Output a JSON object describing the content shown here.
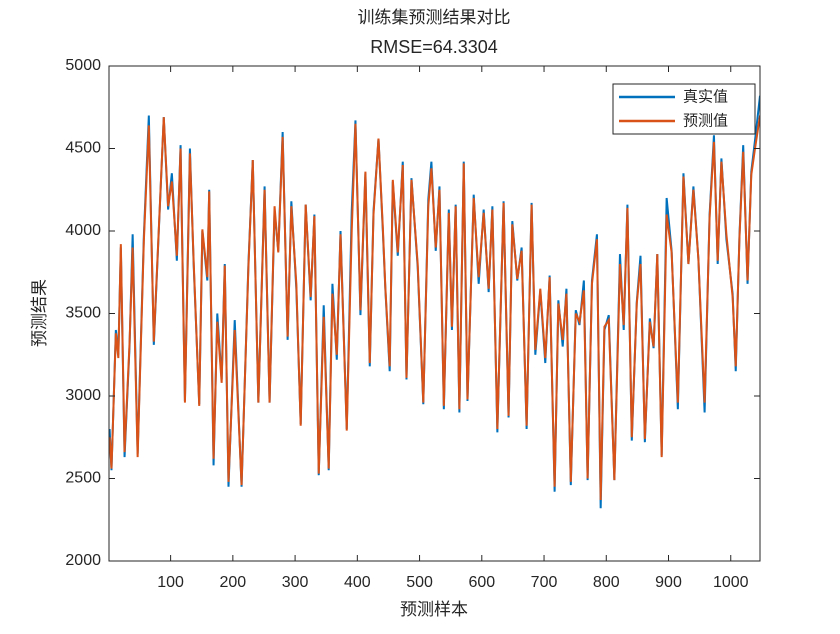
{
  "chart_data": {
    "type": "line",
    "title": "训练集预测结果对比",
    "subtitle": "RMSE=64.3304",
    "x_label": "预测样本",
    "y_label": "预测结果",
    "legend_position": "upper right",
    "grid": false,
    "xlim": [
      1,
      1047
    ],
    "ylim": [
      2000,
      5000
    ],
    "xticks": [
      100,
      200,
      300,
      400,
      500,
      600,
      700,
      800,
      900,
      1000
    ],
    "yticks": [
      2000,
      2500,
      3000,
      3500,
      4000,
      4500,
      5000
    ],
    "x": [
      2,
      5,
      12,
      16,
      20,
      26,
      34,
      39,
      47,
      57,
      65,
      73,
      89,
      96,
      102,
      110,
      116,
      123,
      131,
      137,
      146,
      151,
      159,
      162,
      169,
      175,
      182,
      187,
      193,
      203,
      214,
      225,
      232,
      241,
      251,
      259,
      267,
      273,
      280,
      288,
      294,
      302,
      309,
      317,
      325,
      331,
      338,
      346,
      354,
      360,
      367,
      373,
      383,
      391,
      397,
      405,
      413,
      420,
      426,
      434,
      441,
      445,
      452,
      457,
      465,
      473,
      479,
      487,
      497,
      506,
      514,
      519,
      526,
      532,
      539,
      547,
      552,
      558,
      564,
      571,
      577,
      587,
      595,
      603,
      611,
      617,
      625,
      635,
      643,
      649,
      657,
      664,
      672,
      680,
      686,
      694,
      702,
      709,
      717,
      723,
      730,
      736,
      743,
      751,
      757,
      764,
      770,
      777,
      785,
      791,
      797,
      804,
      813,
      822,
      828,
      834,
      841,
      849,
      855,
      862,
      870,
      876,
      882,
      889,
      897,
      905,
      915,
      924,
      932,
      940,
      948,
      958,
      966,
      973,
      979,
      985,
      993,
      1003,
      1008,
      1014,
      1020,
      1027,
      1033,
      1039,
      1047
    ],
    "series": [
      {
        "name": "真实值",
        "color": "#0072BD",
        "values": [
          2800,
          2550,
          3400,
          3250,
          3900,
          2630,
          3300,
          3980,
          2650,
          3970,
          4700,
          3310,
          4690,
          4130,
          4350,
          3820,
          4520,
          2970,
          4500,
          3800,
          2950,
          4000,
          3700,
          4250,
          2580,
          3500,
          3100,
          3800,
          2450,
          3460,
          2450,
          3800,
          4430,
          2960,
          4270,
          2960,
          4120,
          3880,
          4600,
          3340,
          4180,
          3650,
          2830,
          4160,
          3580,
          4100,
          2520,
          3550,
          2550,
          3680,
          3220,
          4000,
          2800,
          4120,
          4670,
          3490,
          4350,
          3180,
          4120,
          4560,
          4000,
          3650,
          3150,
          4300,
          3850,
          4420,
          3100,
          4320,
          3780,
          2950,
          4190,
          4420,
          3880,
          4270,
          2920,
          4130,
          3400,
          4160,
          2900,
          4420,
          2970,
          4220,
          3680,
          4130,
          3630,
          4150,
          2780,
          4180,
          2870,
          4060,
          3700,
          3900,
          2800,
          4170,
          3250,
          3640,
          3200,
          3730,
          2420,
          3580,
          3300,
          3650,
          2460,
          3520,
          3430,
          3700,
          2490,
          3700,
          3980,
          2320,
          3400,
          3490,
          2490,
          3860,
          3400,
          4160,
          2730,
          3570,
          3850,
          2720,
          3470,
          3290,
          3860,
          2640,
          4200,
          3880,
          2920,
          4350,
          3800,
          4270,
          3830,
          2900,
          4100,
          4580,
          3800,
          4440,
          3950,
          3620,
          3150,
          3970,
          4520,
          3680,
          4360,
          4550,
          4820
        ]
      },
      {
        "name": "预测值",
        "color": "#D95319",
        "values": [
          2750,
          2560,
          3380,
          3230,
          3920,
          2660,
          3320,
          3900,
          2630,
          3940,
          4640,
          3330,
          4690,
          4150,
          4300,
          3850,
          4500,
          2960,
          4470,
          3820,
          2940,
          4010,
          3720,
          4240,
          2620,
          3450,
          3080,
          3790,
          2480,
          3400,
          2460,
          3780,
          4430,
          2960,
          4250,
          2960,
          4150,
          3870,
          4570,
          3360,
          4150,
          3680,
          2820,
          4160,
          3600,
          4090,
          2530,
          3480,
          2560,
          3620,
          3250,
          3980,
          2790,
          4000,
          4650,
          3520,
          4360,
          3200,
          4100,
          4560,
          4020,
          3660,
          3180,
          4310,
          3870,
          4400,
          3110,
          4310,
          3800,
          2960,
          4150,
          4380,
          3900,
          4250,
          2940,
          4110,
          3420,
          4150,
          2920,
          4410,
          2980,
          4200,
          3720,
          4110,
          3650,
          4130,
          2800,
          4170,
          2880,
          4040,
          3710,
          3880,
          2820,
          4160,
          3280,
          3650,
          3230,
          3720,
          2450,
          3560,
          3340,
          3620,
          2480,
          3500,
          3450,
          3640,
          2500,
          3680,
          3950,
          2370,
          3420,
          3460,
          2490,
          3800,
          3430,
          4140,
          2750,
          3560,
          3800,
          2740,
          3450,
          3300,
          3860,
          2630,
          4100,
          3870,
          2960,
          4330,
          3800,
          4250,
          3830,
          2960,
          4080,
          4540,
          3820,
          4420,
          3980,
          3600,
          3180,
          3960,
          4480,
          3700,
          4340,
          4500,
          4700
        ]
      }
    ]
  }
}
